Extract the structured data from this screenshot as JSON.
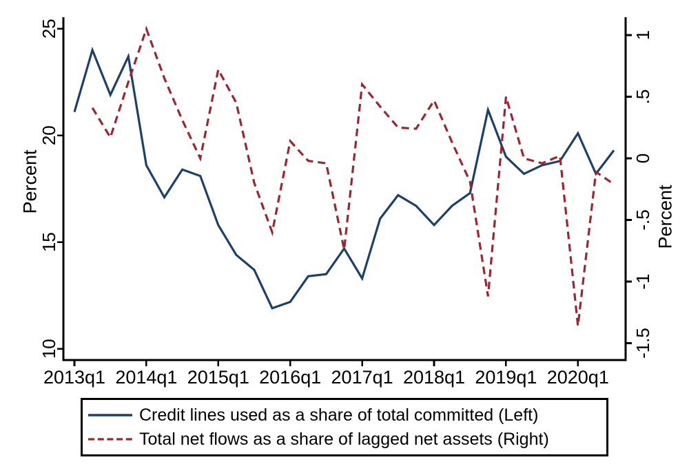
{
  "chart_data": {
    "type": "line",
    "title": "",
    "x_axis": {
      "tick_labels": [
        "2013q1",
        "2014q1",
        "2015q1",
        "2016q1",
        "2017q1",
        "2018q1",
        "2019q1",
        "2020q1"
      ]
    },
    "left_axis": {
      "label": "Percent",
      "tick_labels": [
        "10",
        "15",
        "20",
        "25"
      ],
      "tick_values": [
        10,
        15,
        20,
        25
      ],
      "range": [
        9.5,
        25.5
      ]
    },
    "right_axis": {
      "label": "Percent",
      "tick_labels": [
        "1",
        ".5",
        "0",
        "-.5",
        "-1",
        "-1.5"
      ],
      "tick_values": [
        1,
        0.5,
        0,
        -0.5,
        -1,
        -1.5
      ],
      "range": [
        -1.64,
        1.15
      ]
    },
    "grid": false,
    "legend_position": "bottom",
    "series": [
      {
        "name": "Credit lines used as a share of total committed (Left)",
        "axis": "left",
        "style": "solid",
        "color": "#1b4069",
        "quarters": [
          "2013q1",
          "2013q2",
          "2013q3",
          "2013q4",
          "2014q1",
          "2014q2",
          "2014q3",
          "2014q4",
          "2015q1",
          "2015q2",
          "2015q3",
          "2015q4",
          "2016q1",
          "2016q2",
          "2016q3",
          "2016q4",
          "2017q1",
          "2017q2",
          "2017q3",
          "2017q4",
          "2018q1",
          "2018q2",
          "2018q3",
          "2018q4",
          "2019q1",
          "2019q2",
          "2019q3",
          "2019q4",
          "2020q1",
          "2020q2",
          "2020q3"
        ],
        "values": [
          21.1,
          24.0,
          21.9,
          23.7,
          18.6,
          17.1,
          18.4,
          18.1,
          15.8,
          14.4,
          13.7,
          11.9,
          12.2,
          13.4,
          13.5,
          14.7,
          13.3,
          16.1,
          17.2,
          16.7,
          15.8,
          16.7,
          17.3,
          21.2,
          19.0,
          18.2,
          18.6,
          18.8,
          20.1,
          18.2,
          19.3
        ]
      },
      {
        "name": "Total net flows as a share of lagged net assets (Right)",
        "axis": "right",
        "style": "dashed",
        "color": "#9e2430",
        "quarters": [
          "2013q2",
          "2013q3",
          "2013q4",
          "2014q1",
          "2014q2",
          "2014q3",
          "2014q4",
          "2015q1",
          "2015q2",
          "2015q3",
          "2015q4",
          "2016q1",
          "2016q2",
          "2016q3",
          "2016q4",
          "2017q1",
          "2017q2",
          "2017q3",
          "2017q4",
          "2018q1",
          "2018q2",
          "2018q3",
          "2018q4",
          "2019q1",
          "2019q2",
          "2019q3",
          "2019q4",
          "2020q1",
          "2020q2",
          "2020q3"
        ],
        "values": [
          0.41,
          0.17,
          0.62,
          1.05,
          0.65,
          0.31,
          0.0,
          0.72,
          0.45,
          -0.2,
          -0.6,
          0.14,
          -0.02,
          -0.04,
          -0.74,
          0.6,
          0.42,
          0.25,
          0.24,
          0.47,
          0.13,
          -0.19,
          -1.12,
          0.5,
          0.0,
          -0.04,
          0.02,
          -1.36,
          -0.11,
          -0.21
        ]
      }
    ]
  },
  "legend": {
    "items": [
      {
        "label": "Credit lines used as a share of total committed (Left)",
        "style": "solid",
        "color": "#1b4069"
      },
      {
        "label": "Total net flows as a share of lagged net assets (Right)",
        "style": "dashed",
        "color": "#9e2430"
      }
    ]
  },
  "colors": {
    "credit_lines": "#1b4069",
    "net_flows": "#9e2430",
    "axis": "#000000"
  }
}
